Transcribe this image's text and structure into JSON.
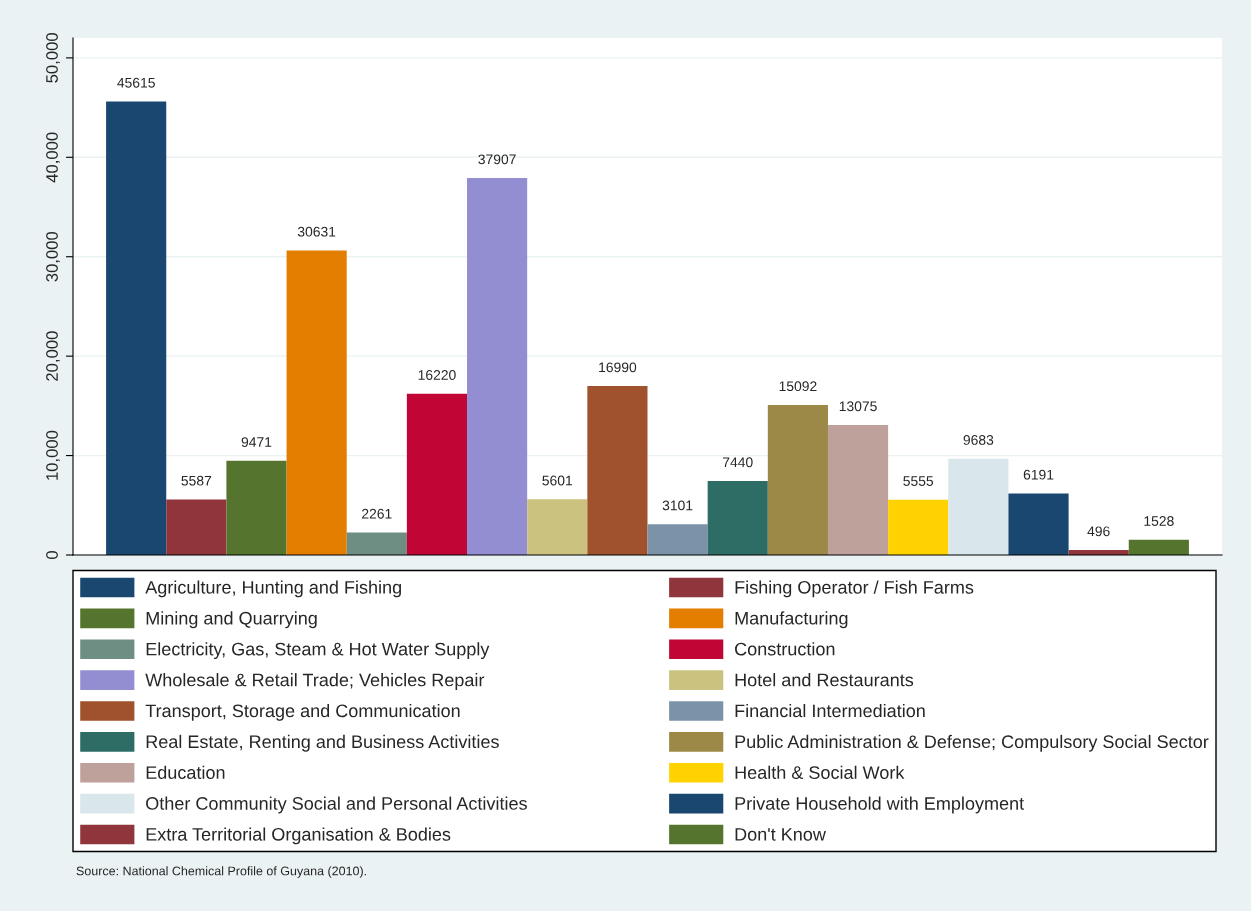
{
  "chart_data": {
    "type": "bar",
    "categories": [
      null
    ],
    "series": [
      {
        "name": "Agriculture, Hunting and Fishing",
        "color": "#1a476f",
        "values": [
          45615
        ]
      },
      {
        "name": "Fishing Operator / Fish Farms",
        "color": "#90353b",
        "values": [
          5587
        ]
      },
      {
        "name": "Mining and Quarrying",
        "color": "#55752f",
        "values": [
          9471
        ]
      },
      {
        "name": "Manufacturing",
        "color": "#e37e00",
        "values": [
          30631
        ]
      },
      {
        "name": "Electricity, Gas, Steam & Hot Water Supply",
        "color": "#6e8e84",
        "values": [
          2261
        ]
      },
      {
        "name": "Construction",
        "color": "#c10534",
        "values": [
          16220
        ]
      },
      {
        "name": "Wholesale & Retail Trade; Vehicles Repair",
        "color": "#938dd2",
        "values": [
          37907
        ]
      },
      {
        "name": "Hotel and Restaurants",
        "color": "#cac27e",
        "values": [
          5601
        ]
      },
      {
        "name": "Transport, Storage and Communication",
        "color": "#a0522d",
        "values": [
          16990
        ]
      },
      {
        "name": "Financial Intermediation",
        "color": "#7b92a8",
        "values": [
          3101
        ]
      },
      {
        "name": "Real Estate, Renting and Business Activities",
        "color": "#2d6d66",
        "values": [
          7440
        ]
      },
      {
        "name": "Public Administration & Defense; Compulsory Social Sector",
        "color": "#9c8847",
        "values": [
          15092
        ]
      },
      {
        "name": "Education",
        "color": "#bfa19c",
        "values": [
          13075
        ]
      },
      {
        "name": "Health & Social Work",
        "color": "#ffd200",
        "values": [
          5555
        ]
      },
      {
        "name": "Other Community Social and Personal Activities",
        "color": "#d9e6eb",
        "values": [
          9683
        ]
      },
      {
        "name": "Private Household with Employment",
        "color": "#1a476f",
        "values": [
          6191
        ]
      },
      {
        "name": "Extra Territorial Organisation & Bodies",
        "color": "#90353b",
        "values": [
          496
        ]
      },
      {
        "name": "Don't Know",
        "color": "#55752f",
        "values": [
          1528
        ]
      }
    ],
    "ylim": [
      0,
      52000
    ],
    "yticks": [
      {
        "value": 0,
        "label": "0"
      },
      {
        "value": 10000,
        "label": "10,000"
      },
      {
        "value": 20000,
        "label": "20,000"
      },
      {
        "value": 30000,
        "label": "30,000"
      },
      {
        "value": 40000,
        "label": "40,000"
      },
      {
        "value": 50000,
        "label": "50,000"
      }
    ],
    "data_labels": true,
    "grid": "y",
    "legend": "bottom",
    "annotations": [
      "Source: National Chemical Profile of Guyana (2010)."
    ]
  }
}
